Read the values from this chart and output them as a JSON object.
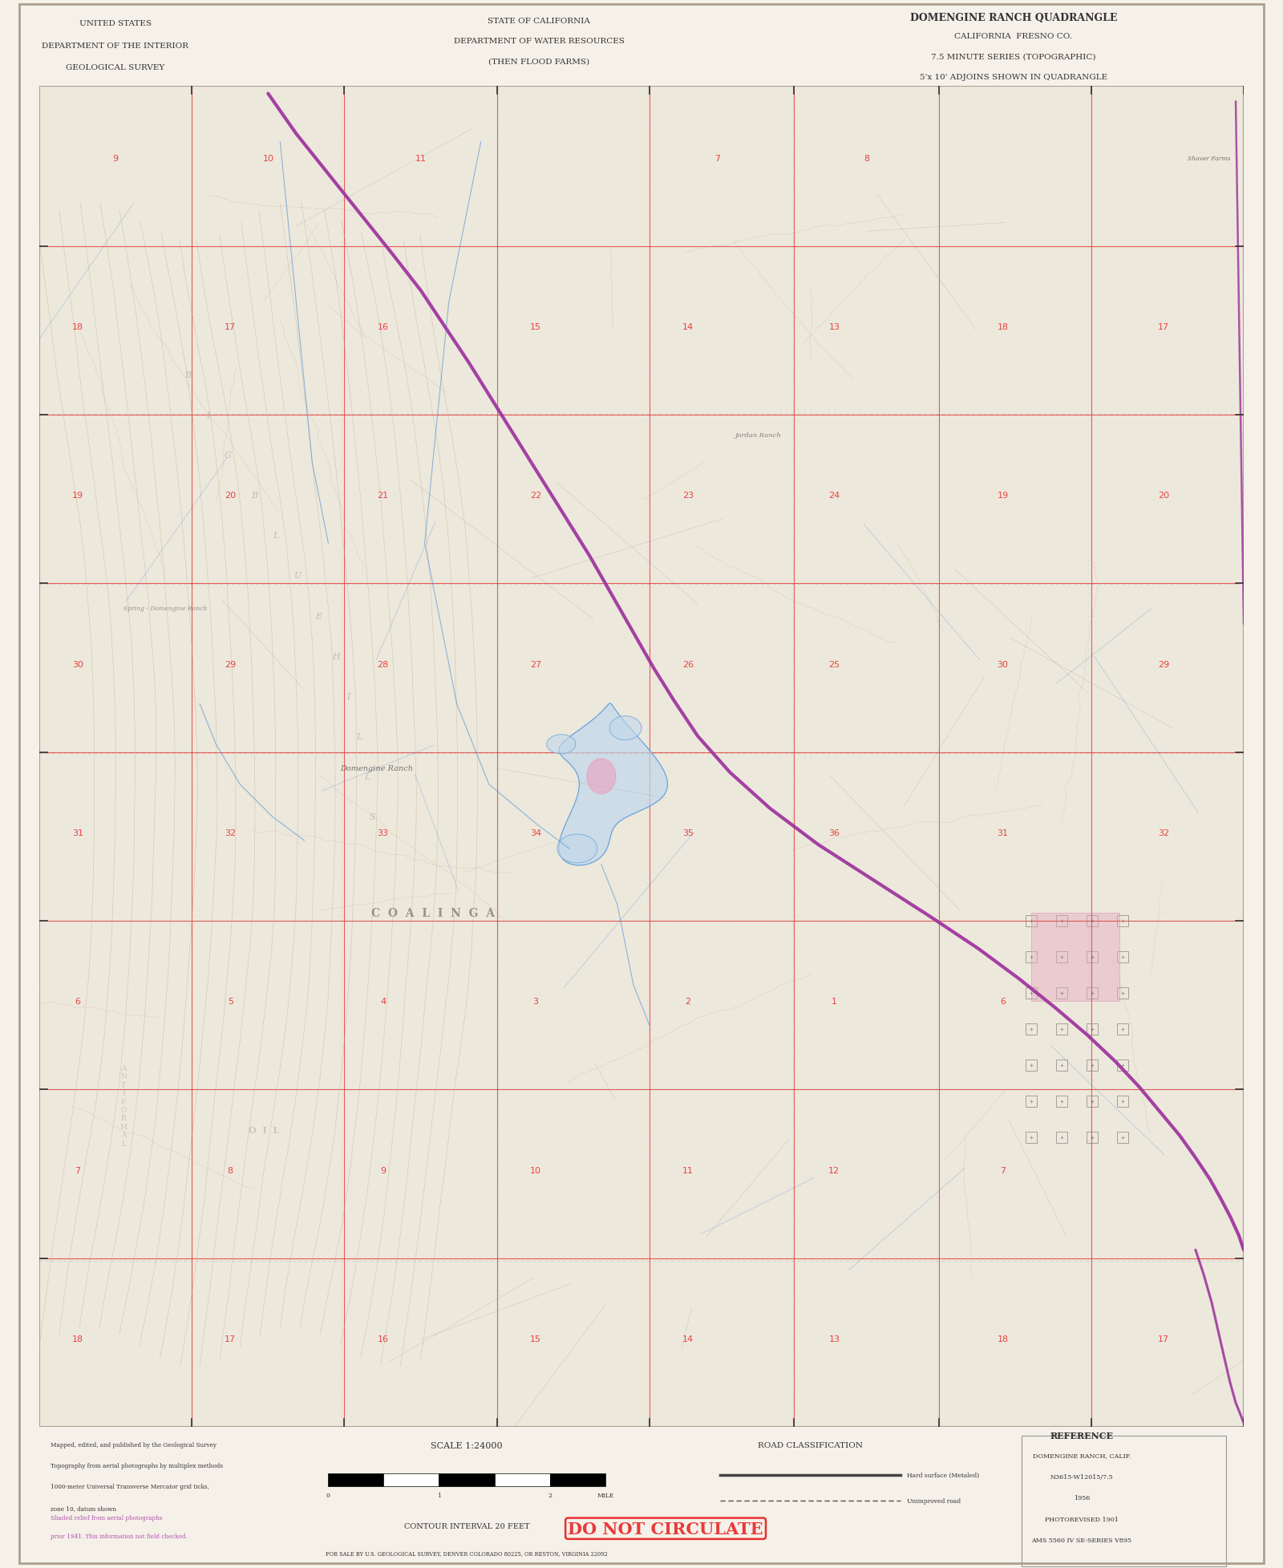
{
  "bg_color": "#f5f0e8",
  "map_bg": "#ede8dc",
  "title_top_left": [
    "UNITED STATES",
    "DEPARTMENT OF THE INTERIOR",
    "GEOLOGICAL SURVEY"
  ],
  "title_top_center": [
    "STATE OF CALIFORNIA",
    "DEPARTMENT OF WATER RESOURCES",
    "(THEN FLOOD FARMS)"
  ],
  "title_top_right": [
    "DOMENGINE RANCH QUADRANGLE",
    "CALIFORNIA  FRESNO CO.",
    "7.5 MINUTE SERIES (TOPOGRAPHIC)",
    "5'x 10' ADJOINS SHOWN IN QUADRANGLE"
  ],
  "bottom_right_box": [
    "DOMENGINE RANCH, CALIF.",
    "N3615-W12015/7.5",
    "1956",
    "PHOTOREVISED 1901",
    "AMS 5560 IV SE-SERIES V895"
  ],
  "do_not_circulate": "DO NOT CIRCULATE",
  "bottom_ref_label": "REFERENCE",
  "scale_label": "SCALE 1:24000",
  "contour_label": "CONTOUR INTERVAL 20 FEET",
  "road_class_label": "ROAD CLASSIFICATION",
  "map_frame_color": "#c0b8a8",
  "grid_color": "#e8403c",
  "water_color": "#4a90d4",
  "road_color_primary": "#9b2d9b",
  "road_color_secondary": "#888888",
  "contour_color": "#b8a890",
  "text_color_red": "#e83030",
  "text_color_black": "#333333",
  "text_color_blue": "#4a6fb5",
  "year": "1956",
  "figsize": [
    16.0,
    19.56
  ],
  "dpi": 100
}
